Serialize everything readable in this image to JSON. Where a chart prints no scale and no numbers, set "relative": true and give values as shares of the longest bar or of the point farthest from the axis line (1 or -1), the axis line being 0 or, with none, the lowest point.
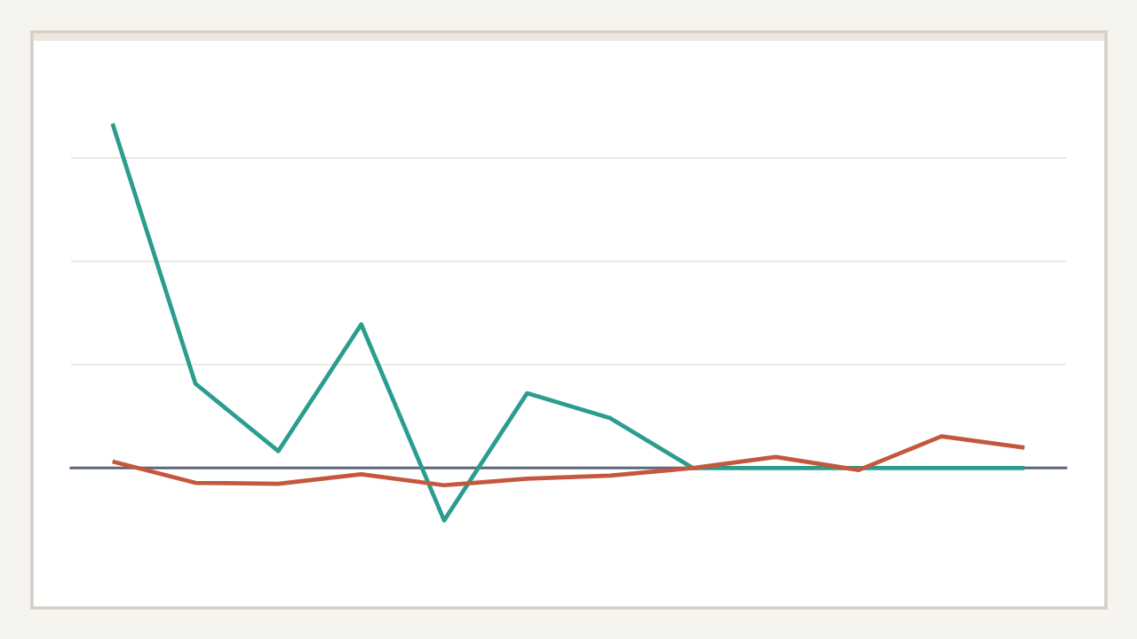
{
  "chart_data": {
    "type": "line",
    "relative": true,
    "tick_labels": false,
    "grid": "y",
    "categories": [
      null,
      null,
      null,
      null,
      null,
      null,
      null,
      null,
      null,
      null,
      null,
      null
    ],
    "series": [
      {
        "color": "#2a9d8f",
        "values": [
          1,
          0.245,
          0.049,
          0.417,
          -0.152,
          0.217,
          0.145,
          0,
          0,
          0,
          0,
          0
        ]
      },
      {
        "color": "#c4573d",
        "values": [
          0.019,
          -0.043,
          -0.046,
          -0.018,
          -0.05,
          -0.031,
          -0.022,
          0,
          0.032,
          -0.006,
          0.092,
          0.059
        ]
      }
    ]
  }
}
